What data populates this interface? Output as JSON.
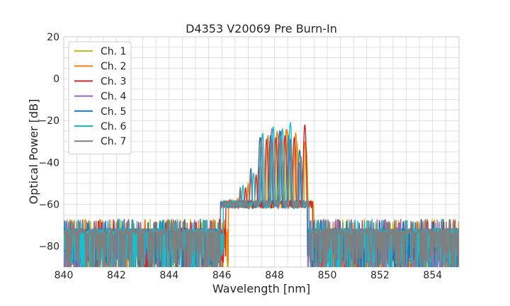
{
  "chart_data": {
    "type": "line",
    "title": "D4353 V20069 Pre Burn-In",
    "xlabel": "Wavelength [nm]",
    "ylabel": "Optical Power [dB]",
    "xlim": [
      840,
      855
    ],
    "ylim": [
      -90,
      20
    ],
    "xticks": [
      840,
      842,
      844,
      846,
      848,
      850,
      852,
      854
    ],
    "xtick_labels": [
      "840",
      "842",
      "844",
      "846",
      "848",
      "850",
      "852",
      "854"
    ],
    "yticks": [
      20,
      0,
      -20,
      -40,
      -60,
      -80
    ],
    "ytick_labels": [
      "20",
      "0",
      "−20",
      "−40",
      "−60",
      "−80"
    ],
    "grid": true,
    "legend_position": "top-left",
    "noise_floor": {
      "mean": -70,
      "x_range": [
        840,
        855
      ]
    },
    "series": [
      {
        "name": "Ch. 1",
        "color": "#bcbd22",
        "peaks": [
          [
            846.6,
            -57
          ],
          [
            847.0,
            -51
          ],
          [
            847.4,
            -44
          ],
          [
            847.8,
            -30
          ],
          [
            848.15,
            -27
          ],
          [
            848.5,
            -25
          ],
          [
            848.85,
            -30
          ],
          [
            849.2,
            -33
          ]
        ]
      },
      {
        "name": "Ch. 2",
        "color": "#ff7f0e",
        "peaks": [
          [
            846.6,
            -57
          ],
          [
            847.0,
            -50
          ],
          [
            847.4,
            -42
          ],
          [
            847.75,
            -27
          ],
          [
            848.1,
            -25
          ],
          [
            848.45,
            -24
          ],
          [
            848.8,
            -26
          ],
          [
            849.15,
            -30
          ]
        ]
      },
      {
        "name": "Ch. 3",
        "color": "#d62728",
        "peaks": [
          [
            846.5,
            -60
          ],
          [
            846.9,
            -52
          ],
          [
            847.3,
            -46
          ],
          [
            847.7,
            -29
          ],
          [
            848.05,
            -28
          ],
          [
            848.4,
            -27
          ],
          [
            848.75,
            -28
          ],
          [
            849.15,
            -22
          ]
        ]
      },
      {
        "name": "Ch. 4",
        "color": "#9467bd",
        "peaks": [
          [
            846.3,
            -62
          ],
          [
            846.7,
            -55
          ],
          [
            847.1,
            -48
          ],
          [
            847.5,
            -30
          ],
          [
            847.9,
            -24
          ],
          [
            848.25,
            -25
          ],
          [
            848.6,
            -29
          ],
          [
            848.95,
            -40
          ]
        ]
      },
      {
        "name": "Ch. 5",
        "color": "#1f77b4",
        "peaks": [
          [
            846.3,
            -60
          ],
          [
            846.7,
            -53
          ],
          [
            847.1,
            -43
          ],
          [
            847.45,
            -28
          ],
          [
            847.85,
            -27
          ],
          [
            848.2,
            -25
          ],
          [
            848.55,
            -27
          ],
          [
            848.95,
            -34
          ]
        ]
      },
      {
        "name": "Ch. 6",
        "color": "#17becf",
        "peaks": [
          [
            846.4,
            -58
          ],
          [
            846.8,
            -51
          ],
          [
            847.2,
            -45
          ],
          [
            847.55,
            -26
          ],
          [
            847.95,
            -23
          ],
          [
            848.3,
            -24
          ],
          [
            848.6,
            -21
          ],
          [
            849.0,
            -39
          ]
        ]
      },
      {
        "name": "Ch. 7",
        "color": "#7f7f7f",
        "peaks": [
          [
            846.3,
            -58
          ],
          [
            846.7,
            -52
          ],
          [
            847.1,
            -45
          ],
          [
            847.5,
            -28
          ],
          [
            847.9,
            -30
          ],
          [
            848.25,
            -29
          ],
          [
            848.6,
            -31
          ],
          [
            849.0,
            -37
          ]
        ]
      }
    ]
  }
}
